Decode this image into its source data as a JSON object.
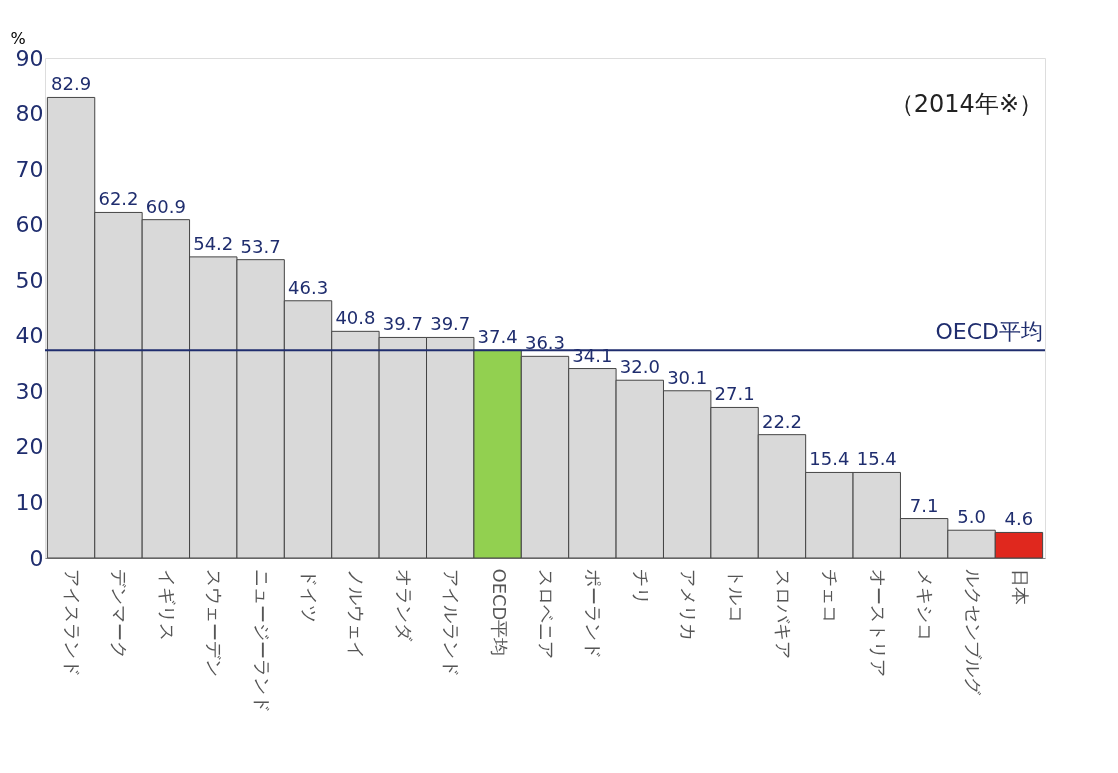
{
  "chart_data": {
    "type": "bar",
    "ylabel": "%",
    "categories": [
      "アイスランド",
      "デンマーク",
      "イギリス",
      "スウェーデン",
      "ニュージーランド",
      "ドイツ",
      "ノルウェイ",
      "オランダ",
      "アイルランド",
      "OECD平均",
      "スロベニア",
      "ポーランド",
      "チリ",
      "アメリカ",
      "トルコ",
      "スロバキア",
      "チェコ",
      "オーストリア",
      "メキシコ",
      "ルクセンブルグ",
      "日本"
    ],
    "values": [
      82.9,
      62.2,
      60.9,
      54.2,
      53.7,
      46.3,
      40.8,
      39.7,
      39.7,
      37.4,
      36.3,
      34.1,
      32.0,
      30.1,
      27.1,
      22.2,
      15.4,
      15.4,
      7.1,
      5.0,
      4.6
    ],
    "value_labels": [
      "82.9",
      "62.2",
      "60.9",
      "54.2",
      "53.7",
      "46.3",
      "40.8",
      "39.7",
      "39.7",
      "37.4",
      "36.3",
      "34.1",
      "32.0",
      "30.1",
      "27.1",
      "22.2",
      "15.4",
      "15.4",
      "7.1",
      "5.0",
      "4.6"
    ],
    "colors": [
      "#d9d9d9",
      "#d9d9d9",
      "#d9d9d9",
      "#d9d9d9",
      "#d9d9d9",
      "#d9d9d9",
      "#d9d9d9",
      "#d9d9d9",
      "#d9d9d9",
      "#92d050",
      "#d9d9d9",
      "#d9d9d9",
      "#d9d9d9",
      "#d9d9d9",
      "#d9d9d9",
      "#d9d9d9",
      "#d9d9d9",
      "#d9d9d9",
      "#d9d9d9",
      "#d9d9d9",
      "#e0281e"
    ],
    "ylim": [
      0,
      90
    ],
    "yticks": [
      0,
      10,
      20,
      30,
      40,
      50,
      60,
      70,
      80,
      90
    ],
    "ref_lines": [
      {
        "axis": "y",
        "value": 37.4,
        "label": "OECD平均",
        "color": "#1f2d6e"
      }
    ],
    "annotations": [
      "（2014年※）"
    ],
    "grid": false
  }
}
